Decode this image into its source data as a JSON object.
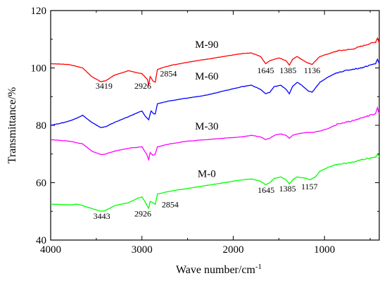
{
  "chart_data": {
    "type": "line",
    "xlabel": "Wave number/cm",
    "xlabel_sup": "-1",
    "ylabel": "Transmittance/%",
    "xlim": [
      4000,
      400
    ],
    "ylim": [
      40,
      120
    ],
    "x_ticks": [
      "4000",
      "3000",
      "2000",
      "1000"
    ],
    "y_ticks": [
      "40",
      "60",
      "80",
      "100",
      "120"
    ],
    "grid": false,
    "series": [
      {
        "name": "M-90",
        "color": "#ff0000",
        "points": [
          [
            4000,
            101.5
          ],
          [
            3800,
            101.2
          ],
          [
            3650,
            100
          ],
          [
            3550,
            97
          ],
          [
            3450,
            95.2
          ],
          [
            3400,
            95.5
          ],
          [
            3300,
            97.5
          ],
          [
            3150,
            99
          ],
          [
            3000,
            98
          ],
          [
            2940,
            96
          ],
          [
            2926,
            94
          ],
          [
            2910,
            97
          ],
          [
            2880,
            95.5
          ],
          [
            2854,
            95
          ],
          [
            2830,
            99.5
          ],
          [
            2700,
            100.8
          ],
          [
            2500,
            102
          ],
          [
            2300,
            103
          ],
          [
            2100,
            104
          ],
          [
            1900,
            105
          ],
          [
            1800,
            105.2
          ],
          [
            1700,
            104
          ],
          [
            1645,
            101.5
          ],
          [
            1600,
            102.5
          ],
          [
            1500,
            103.5
          ],
          [
            1420,
            102.5
          ],
          [
            1385,
            101
          ],
          [
            1350,
            103
          ],
          [
            1300,
            104
          ],
          [
            1200,
            102
          ],
          [
            1136,
            101.2
          ],
          [
            1050,
            104
          ],
          [
            950,
            105
          ],
          [
            850,
            106
          ],
          [
            700,
            106.5
          ],
          [
            600,
            107.5
          ],
          [
            500,
            108.5
          ],
          [
            440,
            109
          ],
          [
            420,
            110.5
          ],
          [
            400,
            108.5
          ]
        ]
      },
      {
        "name": "M-60",
        "color": "#0000ff",
        "points": [
          [
            4000,
            80
          ],
          [
            3850,
            81
          ],
          [
            3750,
            82
          ],
          [
            3650,
            83.5
          ],
          [
            3550,
            81
          ],
          [
            3450,
            79.2
          ],
          [
            3400,
            79.5
          ],
          [
            3300,
            81
          ],
          [
            3150,
            83
          ],
          [
            3000,
            85
          ],
          [
            2960,
            83
          ],
          [
            2926,
            82
          ],
          [
            2900,
            85
          ],
          [
            2870,
            84
          ],
          [
            2854,
            84
          ],
          [
            2830,
            87.5
          ],
          [
            2700,
            88.5
          ],
          [
            2500,
            89.5
          ],
          [
            2300,
            90.5
          ],
          [
            2100,
            92
          ],
          [
            1900,
            93.5
          ],
          [
            1800,
            94
          ],
          [
            1700,
            92.5
          ],
          [
            1645,
            91
          ],
          [
            1600,
            91.5
          ],
          [
            1550,
            93.5
          ],
          [
            1480,
            94
          ],
          [
            1420,
            92.5
          ],
          [
            1385,
            91
          ],
          [
            1350,
            93.5
          ],
          [
            1300,
            95
          ],
          [
            1250,
            94
          ],
          [
            1180,
            92
          ],
          [
            1136,
            91.5
          ],
          [
            1050,
            95
          ],
          [
            950,
            97
          ],
          [
            850,
            98.5
          ],
          [
            700,
            99.5
          ],
          [
            600,
            100
          ],
          [
            500,
            101
          ],
          [
            440,
            101.5
          ],
          [
            420,
            103
          ],
          [
            400,
            101.5
          ]
        ]
      },
      {
        "name": "M-30",
        "color": "#ff00ff",
        "points": [
          [
            4000,
            75
          ],
          [
            3800,
            74.5
          ],
          [
            3650,
            73.5
          ],
          [
            3550,
            71
          ],
          [
            3450,
            69.8
          ],
          [
            3400,
            70
          ],
          [
            3300,
            71
          ],
          [
            3150,
            72
          ],
          [
            3000,
            72.5
          ],
          [
            2950,
            70
          ],
          [
            2926,
            68
          ],
          [
            2910,
            70.5
          ],
          [
            2880,
            69.5
          ],
          [
            2854,
            70
          ],
          [
            2830,
            72.5
          ],
          [
            2700,
            73.5
          ],
          [
            2500,
            74.5
          ],
          [
            2300,
            75
          ],
          [
            2100,
            75.5
          ],
          [
            1900,
            76
          ],
          [
            1800,
            76.5
          ],
          [
            1700,
            76
          ],
          [
            1645,
            75
          ],
          [
            1600,
            75.5
          ],
          [
            1550,
            76.5
          ],
          [
            1480,
            77
          ],
          [
            1420,
            76.5
          ],
          [
            1385,
            75.5
          ],
          [
            1350,
            76.5
          ],
          [
            1300,
            77
          ],
          [
            1200,
            77.5
          ],
          [
            1136,
            77.5
          ],
          [
            1050,
            78
          ],
          [
            950,
            79
          ],
          [
            850,
            80.5
          ],
          [
            700,
            81.5
          ],
          [
            600,
            82.5
          ],
          [
            500,
            83.5
          ],
          [
            440,
            84
          ],
          [
            420,
            86
          ],
          [
            400,
            84
          ]
        ]
      },
      {
        "name": "M-0",
        "color": "#00ff00",
        "points": [
          [
            4000,
            52.5
          ],
          [
            3800,
            52.3
          ],
          [
            3700,
            52.5
          ],
          [
            3600,
            51.5
          ],
          [
            3500,
            50.5
          ],
          [
            3443,
            50
          ],
          [
            3400,
            50.3
          ],
          [
            3300,
            52
          ],
          [
            3150,
            53
          ],
          [
            3050,
            54.5
          ],
          [
            3000,
            55
          ],
          [
            2960,
            53
          ],
          [
            2926,
            51
          ],
          [
            2910,
            53.5
          ],
          [
            2880,
            53
          ],
          [
            2854,
            52.5
          ],
          [
            2830,
            56
          ],
          [
            2700,
            57
          ],
          [
            2500,
            58
          ],
          [
            2300,
            59
          ],
          [
            2100,
            60
          ],
          [
            1900,
            61
          ],
          [
            1800,
            61.3
          ],
          [
            1700,
            60.5
          ],
          [
            1645,
            59.3
          ],
          [
            1600,
            60
          ],
          [
            1550,
            61.5
          ],
          [
            1480,
            62
          ],
          [
            1420,
            61
          ],
          [
            1385,
            59.5
          ],
          [
            1350,
            61
          ],
          [
            1300,
            62
          ],
          [
            1200,
            61.5
          ],
          [
            1157,
            61
          ],
          [
            1100,
            62
          ],
          [
            1050,
            64
          ],
          [
            950,
            65.5
          ],
          [
            850,
            66.5
          ],
          [
            700,
            67
          ],
          [
            600,
            68
          ],
          [
            500,
            68.5
          ],
          [
            440,
            69
          ],
          [
            420,
            70
          ],
          [
            400,
            69
          ]
        ]
      }
    ],
    "series_labels": [
      {
        "text": "M-90",
        "x": 2290,
        "y": 107
      },
      {
        "text": "M-60",
        "x": 2290,
        "y": 96
      },
      {
        "text": "M-30",
        "x": 2290,
        "y": 78.5
      },
      {
        "text": "M-0",
        "x": 2290,
        "y": 62
      }
    ],
    "annotations": [
      {
        "text": "3419",
        "x": 3415,
        "y": 92.8
      },
      {
        "text": "2926",
        "x": 2990,
        "y": 92.8
      },
      {
        "text": "2854",
        "x": 2710,
        "y": 97
      },
      {
        "text": "1645",
        "x": 1645,
        "y": 98.2
      },
      {
        "text": "1385",
        "x": 1400,
        "y": 98.2
      },
      {
        "text": "1136",
        "x": 1136,
        "y": 98.2
      },
      {
        "text": "3443",
        "x": 3440,
        "y": 47.4
      },
      {
        "text": "2926",
        "x": 2990,
        "y": 48.2
      },
      {
        "text": "2854",
        "x": 2690,
        "y": 51.4
      },
      {
        "text": "1645",
        "x": 1640,
        "y": 56.4
      },
      {
        "text": "1385",
        "x": 1405,
        "y": 56.9
      },
      {
        "text": "1157",
        "x": 1165,
        "y": 57.7
      }
    ]
  }
}
